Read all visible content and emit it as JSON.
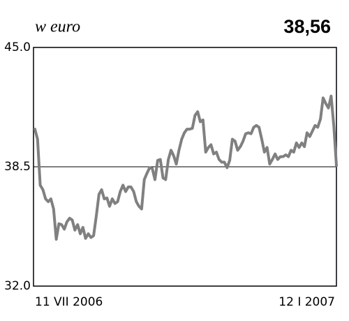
{
  "chart_data": {
    "type": "line",
    "title": "w euro",
    "annotation": "38,56",
    "categories": [
      "11 VII 2006",
      null,
      null,
      null,
      null,
      null,
      null,
      null,
      null,
      null,
      null,
      null,
      null,
      null,
      null,
      null,
      null,
      null,
      null,
      null,
      null,
      null,
      null,
      null,
      null,
      null,
      null,
      null,
      null,
      null,
      null,
      null,
      null,
      null,
      null,
      null,
      null,
      null,
      null,
      null,
      null,
      null,
      null,
      null,
      null,
      null,
      null,
      null,
      null,
      null,
      null,
      null,
      null,
      null,
      null,
      null,
      null,
      null,
      null,
      null,
      null,
      null,
      null,
      null,
      null,
      null,
      null,
      null,
      null,
      null,
      null,
      null,
      null,
      null,
      null,
      null,
      null,
      null,
      null,
      null,
      null,
      null,
      null,
      null,
      null,
      null,
      null,
      null,
      null,
      null,
      null,
      null,
      null,
      null,
      null,
      null,
      null,
      null,
      null,
      null,
      null,
      null,
      null,
      null,
      null,
      null,
      null,
      null,
      null,
      null,
      null,
      null,
      null,
      "12 I 2007"
    ],
    "series": [
      {
        "color": "#808080",
        "values": [
          40.55,
          40.0,
          37.5,
          37.25,
          36.75,
          36.6,
          36.75,
          36.2,
          34.55,
          35.4,
          35.35,
          35.1,
          35.5,
          35.7,
          35.6,
          35.05,
          35.35,
          34.85,
          35.2,
          34.6,
          34.85,
          34.65,
          34.75,
          35.8,
          37.0,
          37.25,
          36.75,
          36.8,
          36.35,
          36.75,
          36.5,
          36.6,
          37.15,
          37.5,
          37.15,
          37.4,
          37.4,
          37.15,
          36.6,
          36.35,
          36.2,
          37.8,
          38.15,
          38.45,
          38.4,
          37.8,
          38.85,
          38.9,
          37.9,
          37.8,
          38.9,
          39.4,
          39.1,
          38.65,
          39.4,
          40.0,
          40.35,
          40.55,
          40.55,
          40.6,
          41.3,
          41.5,
          40.95,
          41.05,
          39.3,
          39.55,
          39.7,
          39.2,
          39.3,
          38.9,
          38.75,
          38.75,
          38.45,
          38.85,
          40.0,
          39.9,
          39.4,
          39.6,
          39.9,
          40.3,
          40.35,
          40.3,
          40.65,
          40.75,
          40.65,
          40.0,
          39.3,
          39.55,
          38.65,
          38.9,
          39.2,
          38.9,
          39.05,
          39.05,
          39.15,
          39.05,
          39.4,
          39.3,
          39.8,
          39.55,
          39.8,
          39.6,
          40.35,
          40.15,
          40.45,
          40.75,
          40.65,
          41.1,
          42.25,
          41.95,
          41.7,
          42.35,
          40.75,
          38.56
        ]
      }
    ],
    "ylim": [
      32,
      45
    ],
    "yticks": [
      {
        "value": 32,
        "label": "32.0"
      },
      38.5,
      {
        "value": 45,
        "label": "45.0"
      }
    ],
    "grid": true
  }
}
